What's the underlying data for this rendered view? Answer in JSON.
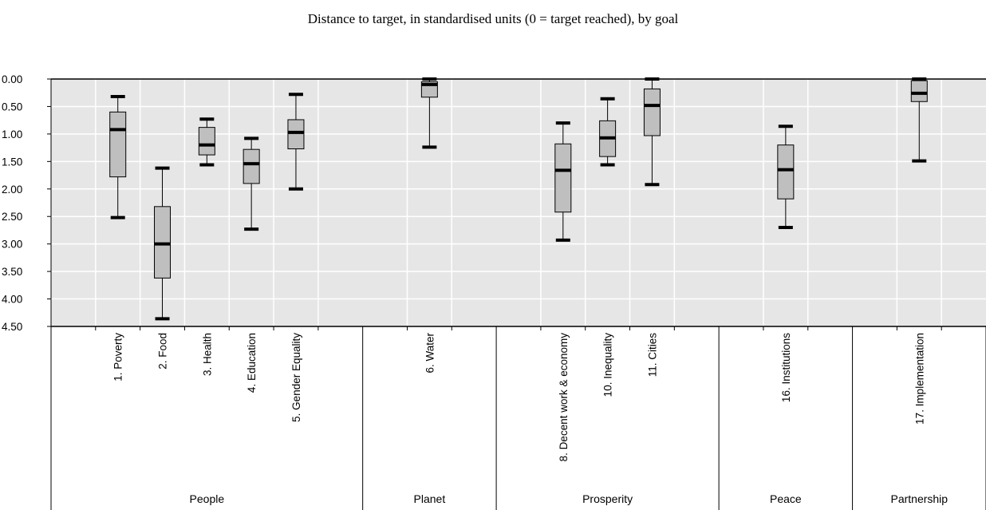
{
  "chart_data": {
    "type": "boxplot",
    "title": "Distance to target, in standardised units (0 = target reached), by goal",
    "y_axis": {
      "reversed": true,
      "ylim": [
        0,
        4.5
      ],
      "ticks": [
        "0.00",
        "0.50",
        "1.00",
        "1.50",
        "2.00",
        "2.50",
        "3.00",
        "3.50",
        "4.00",
        "4.50"
      ]
    },
    "grid": true,
    "colors": {
      "plot_bg": "#e6e6e6",
      "box_fill": "#bfbfbf",
      "grid": "#ffffff",
      "marks": "#000000"
    },
    "groups": [
      {
        "name": "People",
        "slots": 7
      },
      {
        "name": "Planet",
        "slots": 3
      },
      {
        "name": "Prosperity",
        "slots": 5
      },
      {
        "name": "Peace",
        "slots": 3
      },
      {
        "name": "Partnership",
        "slots": 3
      }
    ],
    "categories": [
      {
        "label": "1. Poverty",
        "slot": 1,
        "min": 0.32,
        "q1": 0.6,
        "median": 0.92,
        "q3": 1.78,
        "max": 2.52
      },
      {
        "label": "2. Food",
        "slot": 2,
        "min": 1.62,
        "q1": 2.32,
        "median": 3.0,
        "q3": 3.62,
        "max": 4.36
      },
      {
        "label": "3. Health",
        "slot": 3,
        "min": 0.73,
        "q1": 0.88,
        "median": 1.2,
        "q3": 1.38,
        "max": 1.56
      },
      {
        "label": "4. Education",
        "slot": 4,
        "min": 1.08,
        "q1": 1.28,
        "median": 1.54,
        "q3": 1.9,
        "max": 2.73
      },
      {
        "label": "5. Gender Equality",
        "slot": 5,
        "min": 0.28,
        "q1": 0.74,
        "median": 0.97,
        "q3": 1.27,
        "max": 2.0
      },
      {
        "label": "6. Water",
        "slot": 8,
        "min": 0.0,
        "q1": 0.05,
        "median": 0.1,
        "q3": 0.33,
        "max": 1.24
      },
      {
        "label": "8. Decent work & economy",
        "slot": 11,
        "min": 0.8,
        "q1": 1.18,
        "median": 1.66,
        "q3": 2.42,
        "max": 2.93
      },
      {
        "label": "10. Inequality",
        "slot": 12,
        "min": 0.36,
        "q1": 0.76,
        "median": 1.07,
        "q3": 1.41,
        "max": 1.56
      },
      {
        "label": "11. Cities",
        "slot": 13,
        "min": 0.0,
        "q1": 0.18,
        "median": 0.48,
        "q3": 1.03,
        "max": 1.92
      },
      {
        "label": "16. Institutions",
        "slot": 16,
        "min": 0.86,
        "q1": 1.2,
        "median": 1.65,
        "q3": 2.18,
        "max": 2.7
      },
      {
        "label": "17. Implementation",
        "slot": 19,
        "min": 0.0,
        "q1": 0.03,
        "median": 0.26,
        "q3": 0.41,
        "max": 1.49
      }
    ]
  }
}
